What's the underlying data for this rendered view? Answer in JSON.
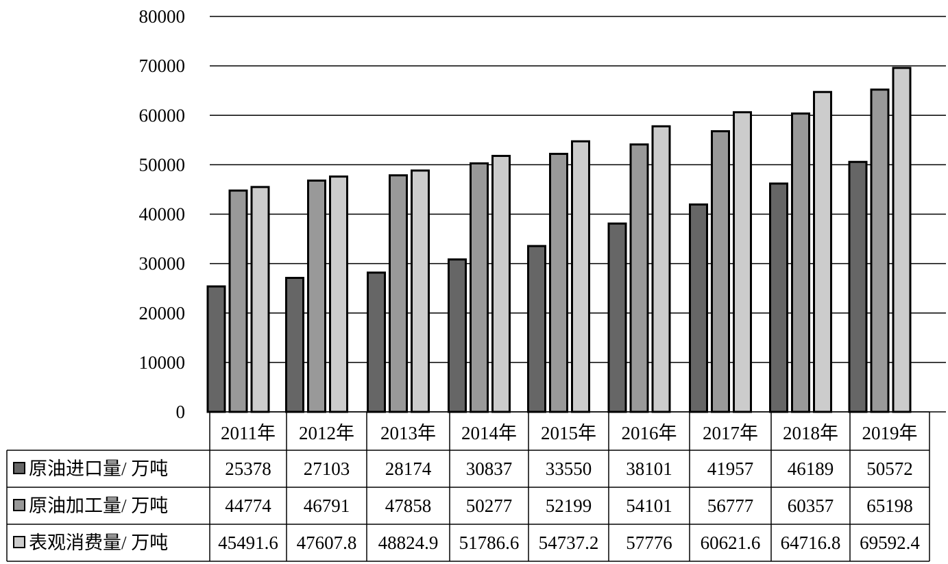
{
  "chart_data": {
    "type": "bar",
    "categories": [
      "2011年",
      "2012年",
      "2013年",
      "2014年",
      "2015年",
      "2016年",
      "2017年",
      "2018年",
      "2019年"
    ],
    "series": [
      {
        "name": "原油进口量/ 万吨",
        "color": "#666666",
        "values": [
          25378,
          27103,
          28174,
          30837,
          33550,
          38101,
          41957,
          46189,
          50572
        ],
        "labels": [
          "25378",
          "27103",
          "28174",
          "30837",
          "33550",
          "38101",
          "41957",
          "46189",
          "50572"
        ]
      },
      {
        "name": "原油加工量/ 万吨",
        "color": "#999999",
        "values": [
          44774,
          46791,
          47858,
          50277,
          52199,
          54101,
          56777,
          60357,
          65198
        ],
        "labels": [
          "44774",
          "46791",
          "47858",
          "50277",
          "52199",
          "54101",
          "56777",
          "60357",
          "65198"
        ]
      },
      {
        "name": "表观消费量/ 万吨",
        "color": "#cccccc",
        "values": [
          45491.6,
          47607.8,
          48824.9,
          51786.6,
          54737.2,
          57776,
          60621.6,
          64716.8,
          69592.4
        ],
        "labels": [
          "45491.6",
          "47607.8",
          "48824.9",
          "51786.6",
          "54737.2",
          "57776",
          "60621.6",
          "64716.8",
          "69592.4"
        ]
      }
    ],
    "y_ticks": [
      "0",
      "10000",
      "20000",
      "30000",
      "40000",
      "50000",
      "60000",
      "70000",
      "80000"
    ],
    "ylim": [
      0,
      80000
    ],
    "grid": true,
    "legend": "data-table-left"
  }
}
